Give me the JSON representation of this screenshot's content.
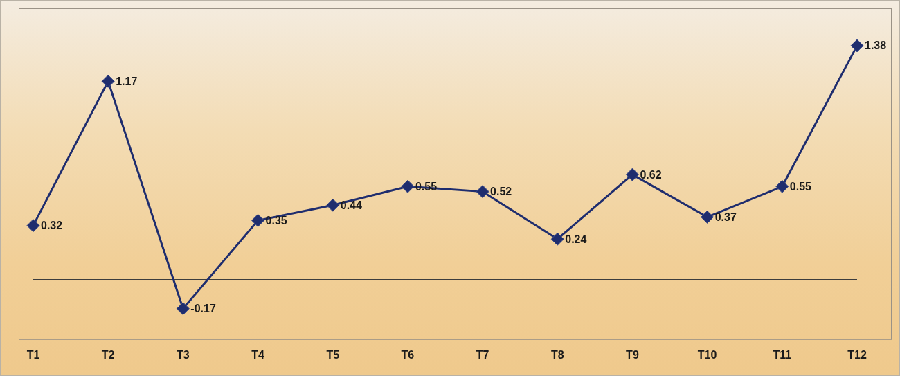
{
  "chart_data": {
    "type": "line",
    "categories": [
      "T1",
      "T2",
      "T3",
      "T4",
      "T5",
      "T6",
      "T7",
      "T8",
      "T9",
      "T10",
      "T11",
      "T12"
    ],
    "values": [
      0.32,
      1.17,
      -0.17,
      0.35,
      0.44,
      0.55,
      0.52,
      0.24,
      0.62,
      0.37,
      0.55,
      1.38
    ],
    "color": "#1f2d6e",
    "ylim": [
      -0.35,
      1.6
    ],
    "yticks": [
      0
    ],
    "grid": true,
    "data_labels": true,
    "tick_labels": "x",
    "marker": "diamond",
    "line_style": "solid"
  }
}
